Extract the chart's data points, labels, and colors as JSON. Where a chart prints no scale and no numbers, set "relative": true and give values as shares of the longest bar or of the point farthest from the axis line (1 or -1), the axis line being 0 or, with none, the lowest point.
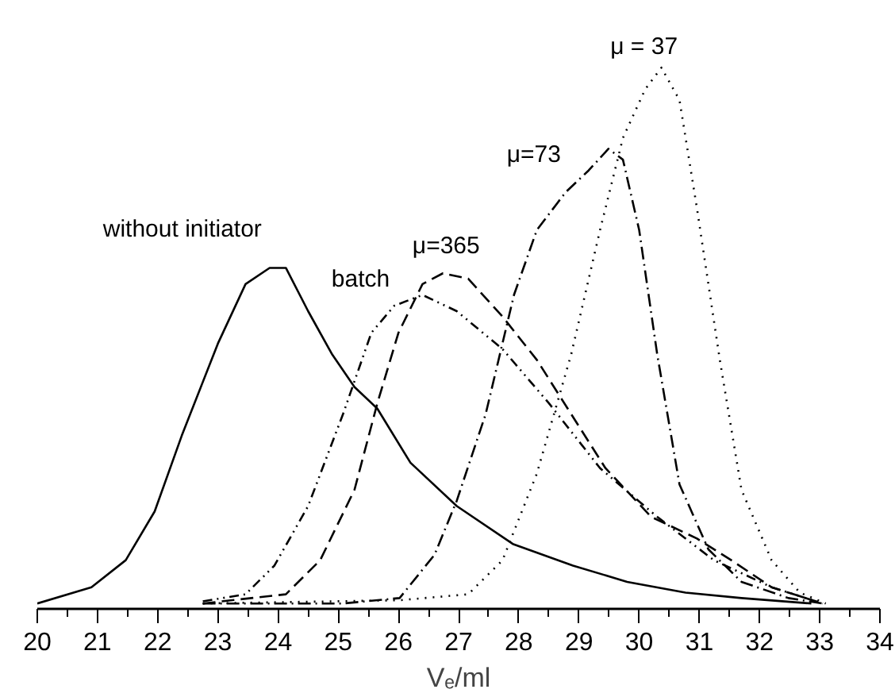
{
  "chart_data": {
    "type": "line",
    "relative": true,
    "xlabel": "Vₑ/ml",
    "xlim": [
      20,
      34
    ],
    "xticks": [
      20,
      21,
      22,
      23,
      24,
      25,
      26,
      27,
      28,
      29,
      30,
      31,
      32,
      33,
      34
    ],
    "grid": false,
    "series": [
      {
        "name": "without initiator",
        "color": "#000000",
        "line_style": "solid",
        "x": [
          20,
          20.9,
          21.47,
          21.95,
          22.4,
          23.0,
          23.46,
          23.86,
          24.13,
          24.5,
          24.9,
          25.27,
          25.65,
          26.2,
          26.97,
          27.9,
          28.9,
          29.8,
          30.77,
          31.7,
          32.86
        ],
        "values": [
          0.01,
          0.04,
          0.09,
          0.18,
          0.32,
          0.49,
          0.6,
          0.63,
          0.63,
          0.55,
          0.47,
          0.41,
          0.37,
          0.27,
          0.19,
          0.12,
          0.08,
          0.05,
          0.03,
          0.02,
          0.01
        ]
      },
      {
        "name": "batch",
        "color": "#000000",
        "line_style": "dashdotdot",
        "x": [
          22.75,
          23.46,
          23.94,
          24.5,
          25.08,
          25.55,
          25.93,
          26.4,
          26.97,
          27.73,
          28.5,
          29.35,
          30.3,
          31.24,
          32.2,
          33.05
        ],
        "values": [
          0.014,
          0.027,
          0.08,
          0.19,
          0.36,
          0.51,
          0.56,
          0.58,
          0.55,
          0.48,
          0.38,
          0.26,
          0.17,
          0.09,
          0.04,
          0.01
        ]
      },
      {
        "name": "μ=365",
        "color": "#000000",
        "line_style": "dashed",
        "x": [
          22.75,
          24.13,
          24.7,
          25.27,
          25.65,
          26.0,
          26.4,
          26.74,
          27.16,
          27.73,
          28.3,
          28.87,
          29.44,
          30.2,
          30.96,
          31.53,
          32.2,
          33.05
        ],
        "values": [
          0.01,
          0.027,
          0.09,
          0.22,
          0.38,
          0.51,
          0.6,
          0.62,
          0.61,
          0.54,
          0.46,
          0.36,
          0.26,
          0.17,
          0.13,
          0.09,
          0.04,
          0.01
        ]
      },
      {
        "name": "μ=73",
        "color": "#000000",
        "line_style": "dashdot",
        "x": [
          22.75,
          25.08,
          26.02,
          26.6,
          26.97,
          27.45,
          27.92,
          28.3,
          28.78,
          29.16,
          29.49,
          29.73,
          30.0,
          30.3,
          30.67,
          31.15,
          31.7,
          32.48,
          33.05
        ],
        "values": [
          0.01,
          0.01,
          0.02,
          0.1,
          0.2,
          0.36,
          0.58,
          0.7,
          0.77,
          0.81,
          0.85,
          0.83,
          0.7,
          0.47,
          0.23,
          0.11,
          0.05,
          0.02,
          0.01
        ]
      },
      {
        "name": "μ = 37",
        "color": "#000000",
        "line_style": "dotted",
        "x": [
          22.75,
          26.02,
          27.16,
          27.73,
          28.3,
          28.87,
          29.35,
          29.73,
          30.1,
          30.37,
          30.67,
          30.96,
          31.34,
          31.7,
          32.2,
          32.67,
          33.1
        ],
        "values": [
          0.01,
          0.016,
          0.027,
          0.09,
          0.25,
          0.47,
          0.7,
          0.87,
          0.96,
          1.0,
          0.94,
          0.74,
          0.46,
          0.22,
          0.09,
          0.03,
          0.01
        ]
      }
    ]
  }
}
